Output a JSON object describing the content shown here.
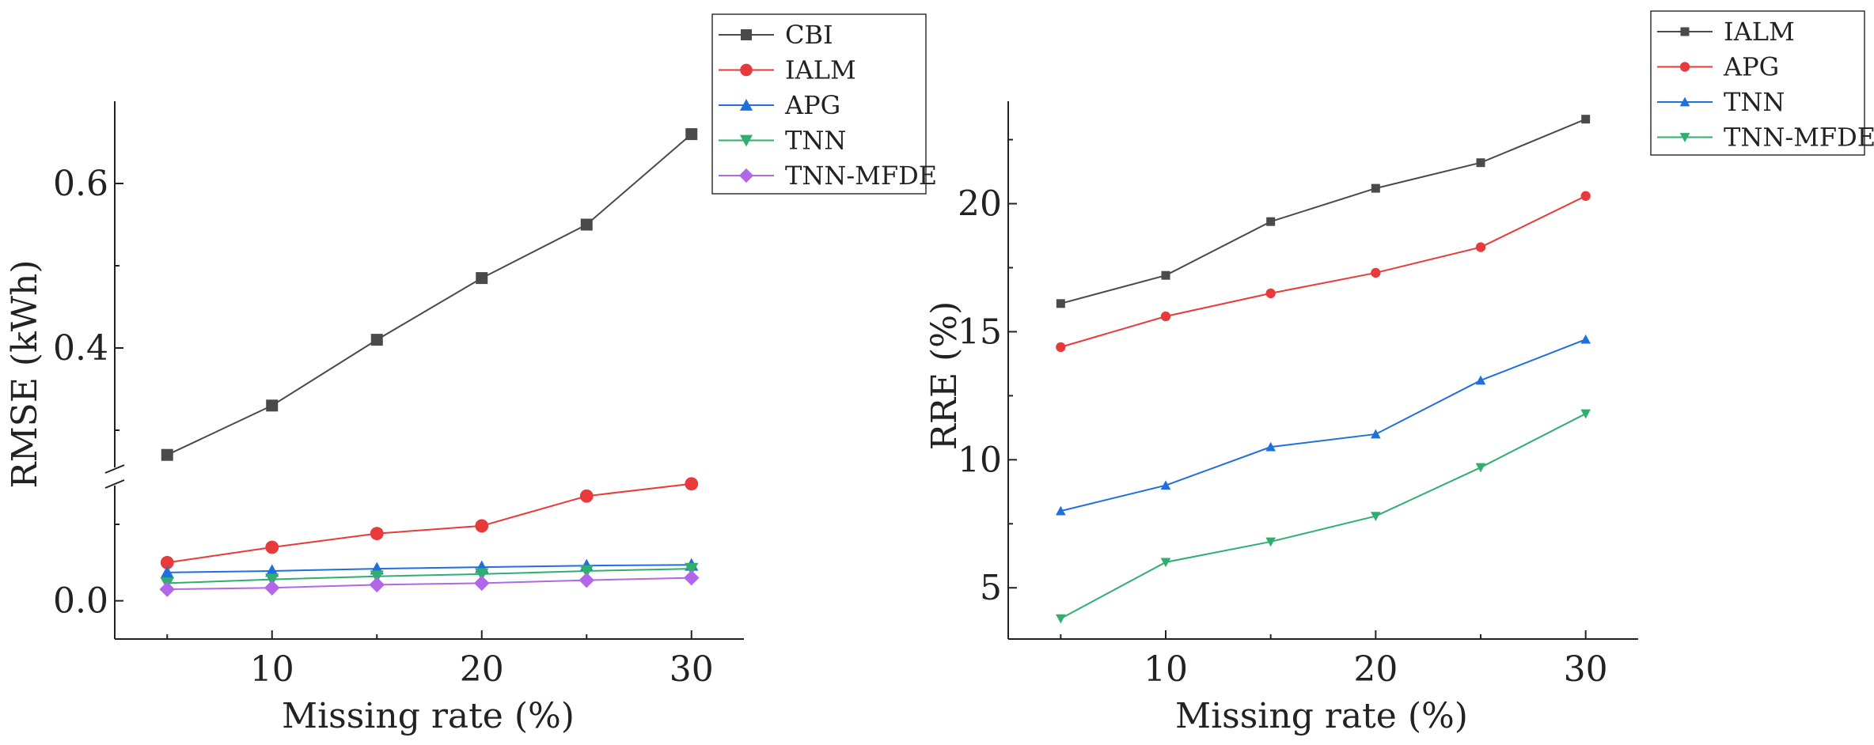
{
  "colors": {
    "CBI": "#4a4a4a",
    "IALM": "#e83a3a",
    "APG": "#1f6fdc",
    "TNN": "#2fae6e",
    "TNN-MFDE": "#b266e8",
    "axis": "#222222"
  },
  "chart_data": [
    {
      "type": "line",
      "xlabel": "Missing rate (%)",
      "ylabel": "RMSE (kWh)",
      "x": [
        5,
        10,
        15,
        20,
        25,
        30
      ],
      "xlim": [
        2.5,
        32.5
      ],
      "xticks": [
        10,
        20,
        30
      ],
      "axis_break": true,
      "lower_segment": {
        "ylim": [
          -0.05,
          0.16
        ],
        "yticks": [
          0.0
        ]
      },
      "upper_segment": {
        "ylim": [
          0.25,
          0.7
        ],
        "yticks": [
          0.4,
          0.6
        ]
      },
      "tick_labels": {
        "0.0": "0.0",
        "0.4": "0.4",
        "0.6": "0.6"
      },
      "legend_position": "top-right",
      "series": [
        {
          "name": "CBI",
          "marker": "square",
          "color_key": "CBI",
          "values": [
            0.27,
            0.33,
            0.41,
            0.485,
            0.55,
            0.66
          ]
        },
        {
          "name": "IALM",
          "marker": "circle",
          "color_key": "IALM",
          "values": [
            0.05,
            0.07,
            0.088,
            0.098,
            0.137,
            0.153
          ]
        },
        {
          "name": "APG",
          "marker": "triangle-up",
          "color_key": "APG",
          "values": [
            0.037,
            0.039,
            0.042,
            0.044,
            0.046,
            0.047
          ]
        },
        {
          "name": "TNN",
          "marker": "triangle-down",
          "color_key": "TNN",
          "values": [
            0.023,
            0.028,
            0.032,
            0.035,
            0.039,
            0.042
          ]
        },
        {
          "name": "TNN-MFDE",
          "marker": "diamond",
          "color_key": "TNN-MFDE",
          "values": [
            0.015,
            0.017,
            0.021,
            0.023,
            0.027,
            0.03
          ]
        }
      ]
    },
    {
      "type": "line",
      "xlabel": "Missing rate (%)",
      "ylabel": "RRE (%)",
      "x": [
        5,
        10,
        15,
        20,
        25,
        30
      ],
      "xlim": [
        2.5,
        32.5
      ],
      "xticks": [
        10,
        20,
        30
      ],
      "ylim": [
        3,
        24
      ],
      "yticks": [
        5,
        10,
        15,
        20
      ],
      "legend_position": "top-right",
      "series": [
        {
          "name": "IALM",
          "marker": "square",
          "color_key": "CBI",
          "values": [
            16.1,
            17.2,
            19.3,
            20.6,
            21.6,
            23.3
          ]
        },
        {
          "name": "APG",
          "marker": "circle",
          "color_key": "IALM",
          "values": [
            14.4,
            15.6,
            16.5,
            17.3,
            18.3,
            20.3
          ]
        },
        {
          "name": "TNN",
          "marker": "triangle-up",
          "color_key": "APG",
          "values": [
            8.0,
            9.0,
            10.5,
            11.0,
            13.1,
            14.7
          ]
        },
        {
          "name": "TNN-MFDE",
          "marker": "triangle-down",
          "color_key": "TNN",
          "values": [
            3.8,
            6.0,
            6.8,
            7.8,
            9.7,
            11.8
          ]
        }
      ]
    }
  ]
}
